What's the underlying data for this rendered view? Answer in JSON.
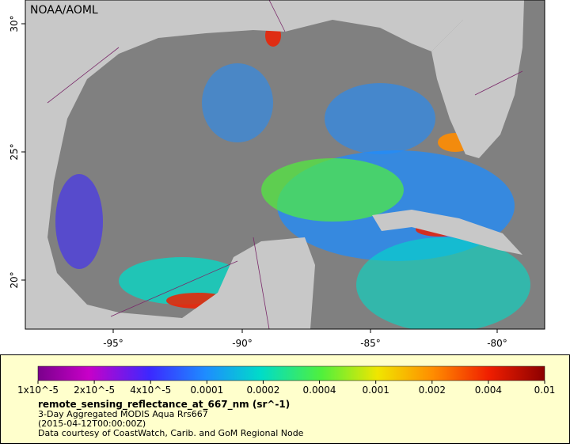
{
  "map": {
    "credit": "NOAA/AOML",
    "lat_labels": [
      "30°",
      "25°",
      "20°"
    ],
    "lon_labels": [
      "-95°",
      "-90°",
      "-85°",
      "-80°"
    ]
  },
  "legend": {
    "colorbar_labels": [
      "1x10^-5",
      "2x10^-5",
      "4x10^-5",
      "0.0001",
      "0.0002",
      "0.0004",
      "0.001",
      "0.002",
      "0.004",
      "0.01"
    ],
    "title": "remote_sensing_reflectance_at_667_nm (sr^-1)",
    "lines": [
      "3-Day Aggregated MODIS Aqua Rrs667",
      "(2015-04-12T00:00:00Z)",
      "Data courtesy of CoastWatch, Carib. and GoM Regional Node"
    ]
  }
}
